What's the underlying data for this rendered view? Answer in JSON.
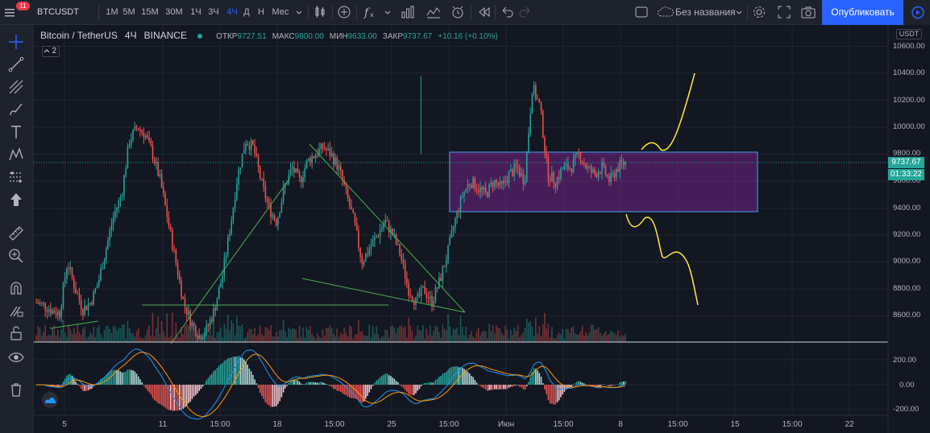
{
  "topbar": {
    "symbol": "BTCUSDT",
    "notification_count": "11",
    "intervals": [
      "1М",
      "5М",
      "15М",
      "30М",
      "1Ч",
      "3Ч",
      "4Ч",
      "Д",
      "Н",
      "Мес"
    ],
    "active_interval": "4Ч",
    "layout_name": "Без названия",
    "publish_label": "Опубликовать"
  },
  "legend": {
    "title": "Bitcoin / TetherUS",
    "interval": "4Ч",
    "exchange": "BINANCE",
    "open_label": "ОТКР",
    "open": "9727.51",
    "high_label": "МАКС",
    "high": "9800.00",
    "low_label": "МИН",
    "low": "9633.00",
    "close_label": "ЗАКР",
    "close": "9737.67",
    "change": "+10.16 (+0.10%)",
    "indicator_count": "2"
  },
  "price_axis": {
    "currency": "USDT",
    "labels": [
      "10600.00",
      "10400.00",
      "10200.00",
      "10000.00",
      "9800.00",
      "9600.00",
      "9400.00",
      "9200.00",
      "9000.00",
      "8800.00",
      "8600.00"
    ],
    "current_price": "9737.67",
    "countdown": "01:33:22",
    "osc_labels": [
      "200.00",
      "0.00",
      "-200.00"
    ]
  },
  "time_axis": {
    "labels": [
      "5",
      "11",
      "15:00",
      "18",
      "15:00",
      "25",
      "15:00",
      "Июн",
      "15:00",
      "8",
      "15:00",
      "15",
      "15:00",
      "22"
    ]
  },
  "colors": {
    "up": "#26a69a",
    "down": "#ef5350",
    "accent": "#2962ff",
    "trendline": "#4caf50",
    "projection": "#ffeb3b",
    "range_box": "#9c27b0"
  },
  "chart_data": {
    "type": "candlestick",
    "symbol": "BTCUSDT",
    "ylim": [
      8400,
      10700
    ],
    "current_price": 9737.67,
    "path_prices": [
      8700,
      8680,
      8640,
      8620,
      9000,
      8800,
      8650,
      8700,
      8850,
      9100,
      9350,
      9500,
      9900,
      10000,
      9950,
      9800,
      9600,
      9300,
      9000,
      8700,
      8550,
      8450,
      8500,
      8650,
      8900,
      9250,
      9650,
      9900,
      9850,
      9600,
      9400,
      9300,
      9550,
      9700,
      9600,
      9750,
      9800,
      9850,
      9800,
      9700,
      9500,
      9300,
      9000,
      9100,
      9200,
      9300,
      9200,
      9050,
      8800,
      8700,
      8800,
      8700,
      8850,
      9050,
      9300,
      9500,
      9600,
      9550,
      9500,
      9600,
      9550,
      9650,
      9700,
      9600,
      10300,
      10150,
      9650,
      9600,
      9700,
      9700,
      9800,
      9700,
      9650,
      9700,
      9600,
      9700,
      9740
    ],
    "range_box": {
      "from_price": 9400,
      "to_price": 9800
    },
    "oscillator": {
      "type": "MACD",
      "ylim": [
        -220,
        240
      ]
    }
  }
}
